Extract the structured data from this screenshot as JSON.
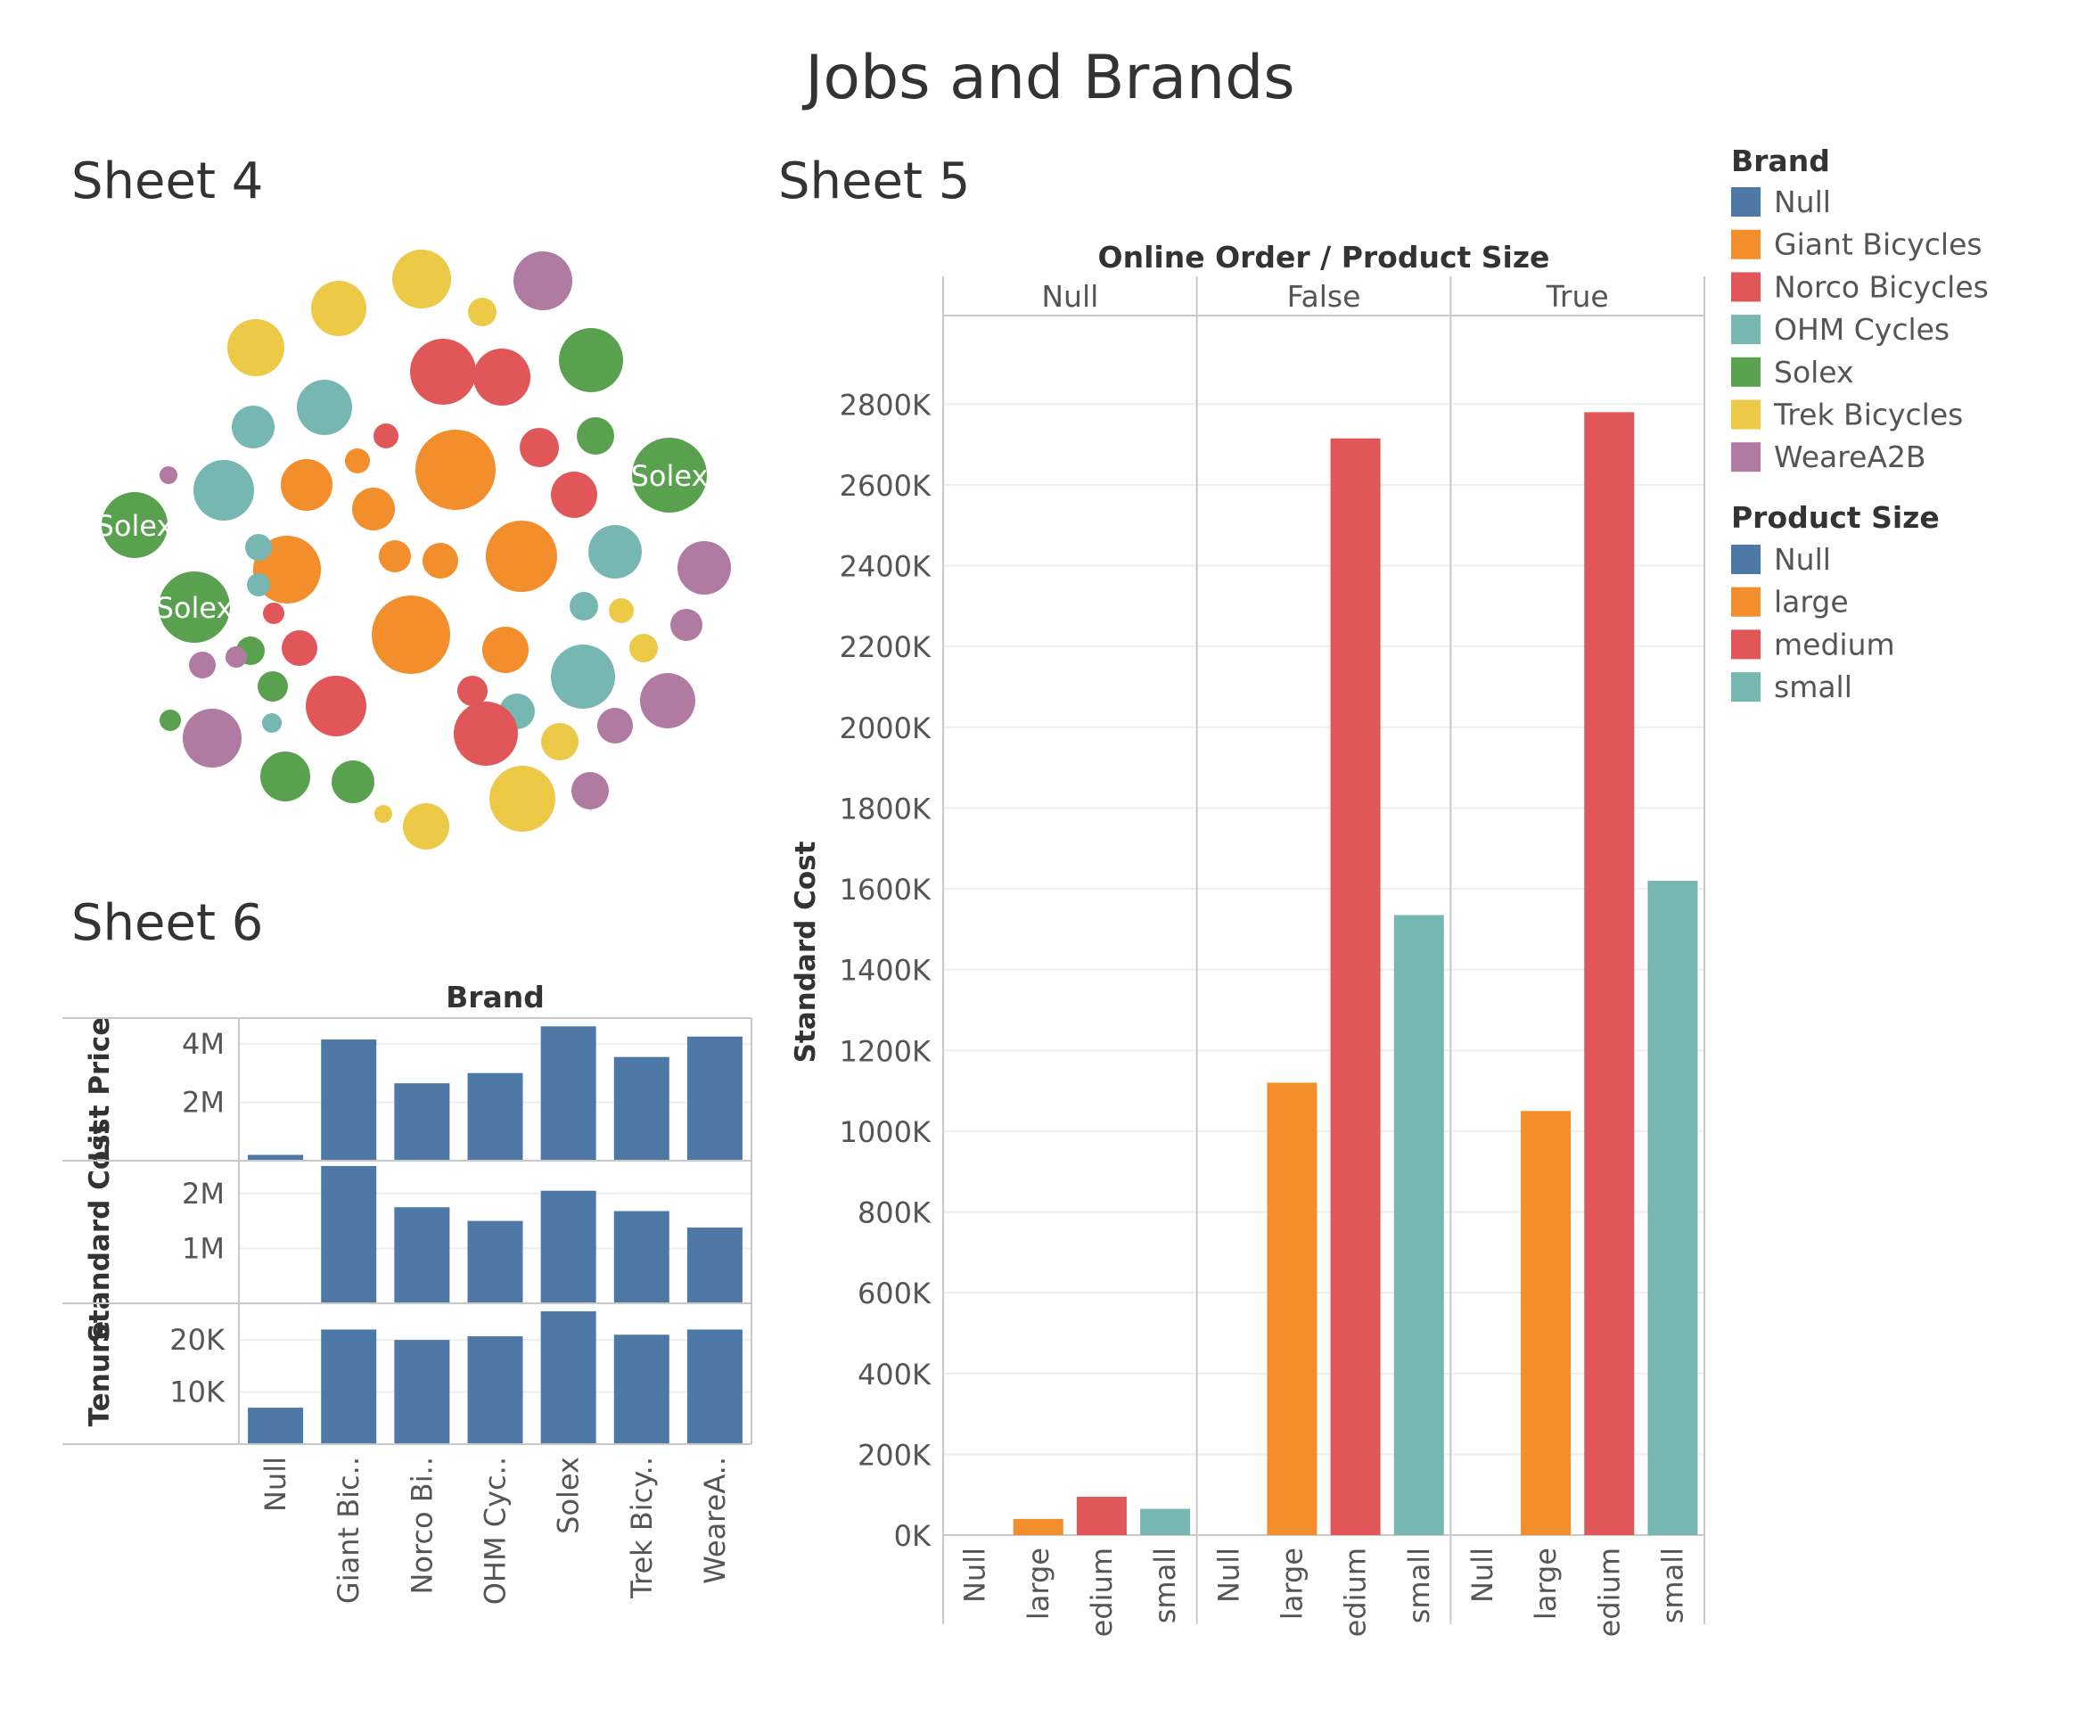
{
  "dashboard_title": "Jobs and Brands",
  "colors": {
    "Null": "#4e79a7",
    "Giant Bicycles": "#f28e2b",
    "Norco Bicycles": "#e15759",
    "OHM Cycles": "#76b7b2",
    "Solex": "#59a14f",
    "Trek Bicycles": "#edc948",
    "WeareA2B": "#b07aa1",
    "large": "#f28e2b",
    "medium": "#e15759",
    "small": "#76b7b2",
    "axis_text": "#555555",
    "grid": "#eeeeee",
    "divider": "#c8c8c8"
  },
  "legend": {
    "brand": {
      "title": "Brand",
      "items": [
        "Null",
        "Giant Bicycles",
        "Norco Bicycles",
        "OHM Cycles",
        "Solex",
        "Trek Bicycles",
        "WeareA2B"
      ]
    },
    "product_size": {
      "title": "Product Size",
      "items": [
        "Null",
        "large",
        "medium",
        "small"
      ]
    }
  },
  "chart_data": [
    {
      "sheet": "Sheet 4",
      "type": "packed-bubble",
      "labels": [
        "Solex",
        "Solex",
        "Solex"
      ],
      "bubbles": [
        {
          "brand": "Trek Bicycles",
          "size": 32
        },
        {
          "brand": "Trek Bicycles",
          "size": 31
        },
        {
          "brand": "Trek Bicycles",
          "size": 33
        },
        {
          "brand": "Trek Bicycles",
          "size": 16
        },
        {
          "brand": "WeareA2B",
          "size": 33
        },
        {
          "brand": "Norco Bicycles",
          "size": 37
        },
        {
          "brand": "Norco Bicycles",
          "size": 32
        },
        {
          "brand": "Solex",
          "size": 36
        },
        {
          "brand": "OHM Cycles",
          "size": 24
        },
        {
          "brand": "OHM Cycles",
          "size": 31
        },
        {
          "brand": "Norco Bicycles",
          "size": 14
        },
        {
          "brand": "Solex",
          "size": 21
        },
        {
          "brand": "Norco Bicycles",
          "size": 22
        },
        {
          "brand": "Solex",
          "size": 42,
          "label": "Solex"
        },
        {
          "brand": "WeareA2B",
          "size": 10
        },
        {
          "brand": "OHM Cycles",
          "size": 34
        },
        {
          "brand": "Giant Bicycles",
          "size": 29
        },
        {
          "brand": "Giant Bicycles",
          "size": 14
        },
        {
          "brand": "Giant Bicycles",
          "size": 45
        },
        {
          "brand": "Norco Bicycles",
          "size": 26
        },
        {
          "brand": "Giant Bicycles",
          "size": 24
        },
        {
          "brand": "Solex",
          "size": 37,
          "label": "Solex"
        },
        {
          "brand": "Giant Bicycles",
          "size": 38
        },
        {
          "brand": "Giant Bicycles",
          "size": 18
        },
        {
          "brand": "Giant Bicycles",
          "size": 20
        },
        {
          "brand": "Giant Bicycles",
          "size": 40
        },
        {
          "brand": "OHM Cycles",
          "size": 15
        },
        {
          "brand": "OHM Cycles",
          "size": 13
        },
        {
          "brand": "OHM Cycles",
          "size": 30
        },
        {
          "brand": "WeareA2B",
          "size": 30
        },
        {
          "brand": "Solex",
          "size": 40,
          "label": "Solex"
        },
        {
          "brand": "Norco Bicycles",
          "size": 12
        },
        {
          "brand": "Giant Bicycles",
          "size": 44
        },
        {
          "brand": "Giant Bicycles",
          "size": 26
        },
        {
          "brand": "OHM Cycles",
          "size": 16
        },
        {
          "brand": "Trek Bicycles",
          "size": 14
        },
        {
          "brand": "OHM Cycles",
          "size": 36
        },
        {
          "brand": "Trek Bicycles",
          "size": 16
        },
        {
          "brand": "WeareA2B",
          "size": 18
        },
        {
          "brand": "Norco Bicycles",
          "size": 20
        },
        {
          "brand": "Solex",
          "size": 16
        },
        {
          "brand": "WeareA2B",
          "size": 15
        },
        {
          "brand": "WeareA2B",
          "size": 12
        },
        {
          "brand": "Solex",
          "size": 17
        },
        {
          "brand": "Norco Bicycles",
          "size": 34
        },
        {
          "brand": "Norco Bicycles",
          "size": 17
        },
        {
          "brand": "OHM Cycles",
          "size": 20
        },
        {
          "brand": "WeareA2B",
          "size": 31
        },
        {
          "brand": "WeareA2B",
          "size": 33
        },
        {
          "brand": "Solex",
          "size": 12
        },
        {
          "brand": "Norco Bicycles",
          "size": 36
        },
        {
          "brand": "OHM Cycles",
          "size": 11
        },
        {
          "brand": "Trek Bicycles",
          "size": 21
        },
        {
          "brand": "WeareA2B",
          "size": 20
        },
        {
          "brand": "Solex",
          "size": 28
        },
        {
          "brand": "Solex",
          "size": 24
        },
        {
          "brand": "Trek Bicycles",
          "size": 37
        },
        {
          "brand": "WeareA2B",
          "size": 21
        },
        {
          "brand": "Trek Bicycles",
          "size": 10
        },
        {
          "brand": "Trek Bicycles",
          "size": 26
        }
      ]
    },
    {
      "sheet": "Sheet 5",
      "type": "bar",
      "header_title": "Online Order / Product Size",
      "ylabel": "Standard Cost",
      "ylim": [
        0,
        2900000
      ],
      "y_ticks": [
        0,
        200000,
        400000,
        600000,
        800000,
        1000000,
        1200000,
        1400000,
        1600000,
        1800000,
        2000000,
        2200000,
        2400000,
        2600000,
        2800000
      ],
      "y_tick_labels": [
        "0K",
        "200K",
        "400K",
        "600K",
        "800K",
        "1000K",
        "1200K",
        "1400K",
        "1600K",
        "1800K",
        "2000K",
        "2200K",
        "2400K",
        "2600K",
        "2800K"
      ],
      "panels": [
        {
          "label": "Null",
          "categories": [
            "Null",
            "large",
            "medium",
            "small"
          ],
          "display_labels": [
            "Null",
            "large",
            "edium",
            "small"
          ],
          "values": [
            0,
            40000,
            95000,
            65000
          ]
        },
        {
          "label": "False",
          "categories": [
            "Null",
            "large",
            "medium",
            "small"
          ],
          "display_labels": [
            "Null",
            "large",
            "edium",
            "small"
          ],
          "values": [
            0,
            1120000,
            2715000,
            1535000
          ]
        },
        {
          "label": "True",
          "categories": [
            "Null",
            "large",
            "medium",
            "small"
          ],
          "display_labels": [
            "Null",
            "large",
            "edium",
            "small"
          ],
          "values": [
            0,
            1050000,
            2780000,
            1620000
          ]
        }
      ]
    },
    {
      "sheet": "Sheet 6",
      "type": "bar",
      "header_title": "Brand",
      "categories": [
        "Null",
        "Giant Bicycles",
        "Norco Bicycles",
        "OHM Cycles",
        "Solex",
        "Trek Bicycles",
        "WeareA2B"
      ],
      "display_labels": [
        "Null",
        "Giant Bic..",
        "Norco Bi..",
        "OHM Cyc..",
        "Solex",
        "Trek Bicy..",
        "WeareA.."
      ],
      "rows": [
        {
          "label": "List Price",
          "ylim": [
            0,
            4700000
          ],
          "ticks": [
            2000000,
            4000000
          ],
          "tick_labels": [
            "2M",
            "4M"
          ],
          "values": [
            200000,
            4150000,
            2650000,
            3000000,
            4600000,
            3550000,
            4250000
          ]
        },
        {
          "label": "Standard Cost",
          "ylim": [
            0,
            2500000
          ],
          "ticks": [
            1000000,
            2000000
          ],
          "tick_labels": [
            "1M",
            "2M"
          ],
          "values": [
            0,
            2500000,
            1750000,
            1500000,
            2050000,
            1680000,
            1380000
          ]
        },
        {
          "label": "Tenure",
          "ylim": [
            0,
            26000
          ],
          "ticks": [
            10000,
            20000
          ],
          "tick_labels": [
            "10K",
            "20K"
          ],
          "values": [
            7000,
            22000,
            20000,
            20700,
            25500,
            21000,
            22000
          ]
        }
      ]
    }
  ]
}
